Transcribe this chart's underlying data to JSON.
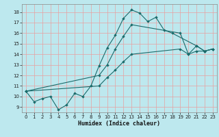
{
  "xlabel": "Humidex (Indice chaleur)",
  "bg_color": "#bde8ee",
  "grid_color": "#e8a0a0",
  "line_color": "#1a6b6b",
  "xlim": [
    -0.5,
    23.5
  ],
  "ylim": [
    8.5,
    18.75
  ],
  "xticks": [
    0,
    1,
    2,
    3,
    4,
    5,
    6,
    7,
    8,
    9,
    10,
    11,
    12,
    13,
    14,
    15,
    16,
    17,
    18,
    19,
    20,
    21,
    22,
    23
  ],
  "yticks": [
    9,
    10,
    11,
    12,
    13,
    14,
    15,
    16,
    17,
    18
  ],
  "series": [
    {
      "x": [
        0,
        1,
        2,
        3,
        4,
        5,
        6,
        7,
        8,
        9,
        10,
        11,
        12,
        13,
        14,
        15,
        16,
        17,
        18,
        21,
        22,
        23
      ],
      "y": [
        10.5,
        9.5,
        9.8,
        10.0,
        8.75,
        9.2,
        10.3,
        10.0,
        11.0,
        12.9,
        14.6,
        15.8,
        17.4,
        18.2,
        17.9,
        17.1,
        17.5,
        16.3,
        16.0,
        14.8,
        14.3,
        14.5
      ]
    },
    {
      "x": [
        0,
        9,
        10,
        11,
        12,
        13,
        19,
        20,
        21,
        22,
        23
      ],
      "y": [
        10.5,
        12.0,
        13.0,
        14.5,
        15.7,
        16.8,
        16.0,
        14.0,
        14.8,
        14.3,
        14.5
      ]
    },
    {
      "x": [
        0,
        9,
        10,
        11,
        12,
        13,
        19,
        20,
        21,
        22,
        23
      ],
      "y": [
        10.5,
        11.0,
        11.8,
        12.5,
        13.3,
        14.0,
        14.5,
        14.0,
        14.3,
        14.3,
        14.5
      ]
    }
  ]
}
